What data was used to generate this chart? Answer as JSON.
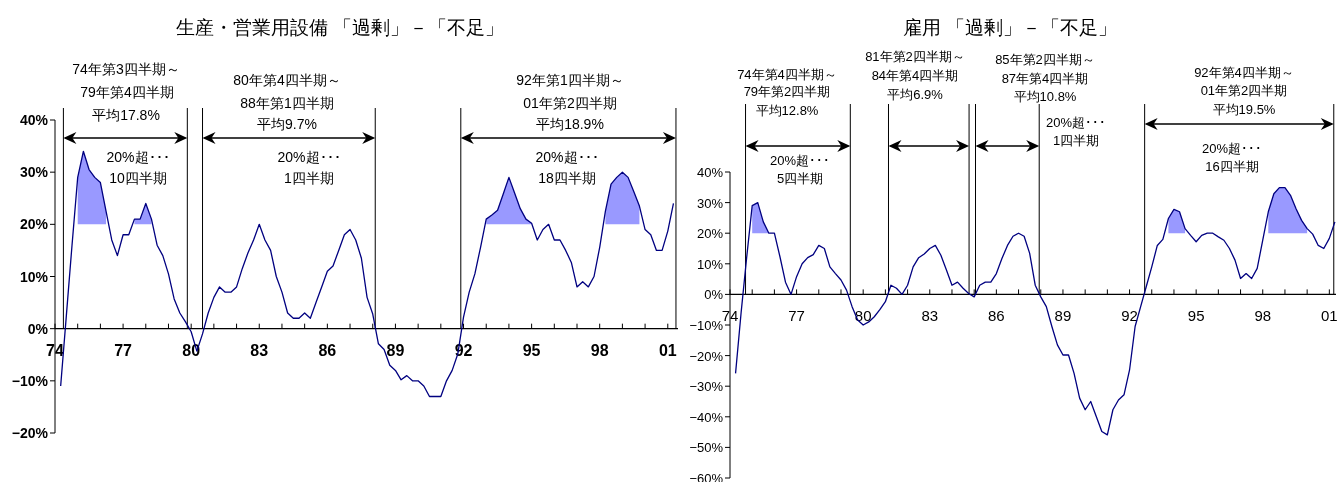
{
  "chart_data": [
    {
      "type": "line",
      "title": "生産・営業用設備 「過剰」－「不足」",
      "x": [
        1974.25,
        1974.5,
        1974.75,
        1975,
        1975.25,
        1975.5,
        1975.75,
        1976,
        1976.25,
        1976.5,
        1976.75,
        1977,
        1977.25,
        1977.5,
        1977.75,
        1978,
        1978.25,
        1978.5,
        1978.75,
        1979,
        1979.25,
        1979.5,
        1979.75,
        1980,
        1980.25,
        1980.5,
        1980.75,
        1981,
        1981.25,
        1981.5,
        1981.75,
        1982,
        1982.25,
        1982.5,
        1982.75,
        1983,
        1983.25,
        1983.5,
        1983.75,
        1984,
        1984.25,
        1984.5,
        1984.75,
        1985,
        1985.25,
        1985.5,
        1985.75,
        1986,
        1986.25,
        1986.5,
        1986.75,
        1987,
        1987.25,
        1987.5,
        1987.75,
        1988,
        1988.25,
        1988.5,
        1988.75,
        1989,
        1989.25,
        1989.5,
        1989.75,
        1990,
        1990.25,
        1990.5,
        1990.75,
        1991,
        1991.25,
        1991.5,
        1991.75,
        1992,
        1992.25,
        1992.5,
        1992.75,
        1993,
        1993.25,
        1993.5,
        1993.75,
        1994,
        1994.25,
        1994.5,
        1994.75,
        1995,
        1995.25,
        1995.5,
        1995.75,
        1996,
        1996.25,
        1996.5,
        1996.75,
        1997,
        1997.25,
        1997.5,
        1997.75,
        1998,
        1998.25,
        1998.5,
        1998.75,
        1999,
        1999.25,
        1999.5,
        1999.75,
        2000,
        2000.25,
        2000.5,
        2000.75,
        2001,
        2001.25
      ],
      "series": [
        {
          "color": "#000080",
          "values": [
            -11,
            2.5,
            16,
            29,
            34,
            30.5,
            29,
            28,
            22.5,
            17,
            14,
            18,
            18,
            21,
            21,
            24,
            21,
            16,
            14,
            10.5,
            5.7,
            3,
            1.3,
            -0.6,
            -4.3,
            -1,
            3,
            6,
            8,
            7,
            7,
            8,
            11.5,
            14.5,
            17,
            20,
            17,
            15,
            10,
            7,
            3,
            2,
            2,
            3,
            2,
            5,
            8,
            11,
            12,
            15,
            18,
            19,
            17,
            13.5,
            6,
            2.8,
            -2.9,
            -4,
            -7,
            -8,
            -9.8,
            -9,
            -10,
            -10,
            -11,
            -13,
            -13,
            -13,
            -10,
            -8,
            -4.8,
            2.2,
            7,
            10.5,
            15.6,
            21,
            21.8,
            22.7,
            25.8,
            29,
            26,
            23,
            21,
            20.2,
            17,
            19,
            20,
            17,
            17,
            15,
            12.7,
            8,
            9,
            8,
            10,
            15.6,
            22.5,
            27.7,
            29,
            30,
            29,
            26.3,
            23.5,
            19,
            18,
            15,
            15,
            18.7,
            24
          ],
          "lower": [
            null,
            null,
            null,
            20,
            20,
            20,
            20,
            20,
            20,
            null,
            null,
            null,
            null,
            20,
            20,
            20,
            20,
            null,
            null,
            null,
            null,
            null,
            null,
            null,
            null,
            null,
            null,
            null,
            null,
            null,
            null,
            null,
            null,
            null,
            null,
            null,
            null,
            null,
            null,
            null,
            null,
            null,
            null,
            null,
            null,
            null,
            null,
            null,
            null,
            null,
            null,
            null,
            null,
            null,
            null,
            null,
            null,
            null,
            null,
            null,
            null,
            null,
            null,
            null,
            null,
            null,
            null,
            null,
            null,
            null,
            null,
            null,
            null,
            null,
            null,
            20,
            20,
            20,
            20,
            20,
            20,
            20,
            20,
            20,
            null,
            null,
            null,
            null,
            null,
            null,
            null,
            null,
            null,
            null,
            null,
            null,
            20,
            20,
            20,
            20,
            20,
            20,
            20,
            null,
            null,
            null,
            null,
            null,
            null
          ],
          "upper": [
            null,
            null,
            null,
            29,
            34,
            30.5,
            29,
            28,
            22.5,
            null,
            null,
            null,
            null,
            21,
            21,
            24,
            21,
            null,
            null,
            null,
            null,
            null,
            null,
            null,
            null,
            null,
            null,
            null,
            null,
            null,
            null,
            null,
            null,
            null,
            null,
            null,
            null,
            null,
            null,
            null,
            null,
            null,
            null,
            null,
            null,
            null,
            null,
            null,
            null,
            null,
            null,
            null,
            null,
            null,
            null,
            null,
            null,
            null,
            null,
            null,
            null,
            null,
            null,
            null,
            null,
            null,
            null,
            null,
            null,
            null,
            null,
            null,
            null,
            null,
            null,
            21,
            21.8,
            22.7,
            25.8,
            29,
            26,
            23,
            21,
            20.2,
            null,
            null,
            null,
            null,
            null,
            null,
            null,
            null,
            null,
            null,
            null,
            null,
            22.5,
            27.7,
            29,
            30,
            29,
            26.3,
            23.5,
            null,
            null,
            null,
            null,
            null,
            null
          ]
        }
      ],
      "xlim": [
        1974,
        2001.45
      ],
      "xticks": [
        {
          "value": 1974,
          "label": "74"
        },
        {
          "value": 1975,
          "label": null
        },
        {
          "value": 1976,
          "label": null
        },
        {
          "value": 1977,
          "label": "77"
        },
        {
          "value": 1978,
          "label": null
        },
        {
          "value": 1979,
          "label": null
        },
        {
          "value": 1980,
          "label": "80"
        },
        {
          "value": 1981,
          "label": null
        },
        {
          "value": 1982,
          "label": null
        },
        {
          "value": 1983,
          "label": "83"
        },
        {
          "value": 1984,
          "label": null
        },
        {
          "value": 1985,
          "label": null
        },
        {
          "value": 1986,
          "label": "86"
        },
        {
          "value": 1987,
          "label": null
        },
        {
          "value": 1988,
          "label": null
        },
        {
          "value": 1989,
          "label": "89"
        },
        {
          "value": 1990,
          "label": null
        },
        {
          "value": 1991,
          "label": null
        },
        {
          "value": 1992,
          "label": "92"
        },
        {
          "value": 1993,
          "label": null
        },
        {
          "value": 1994,
          "label": null
        },
        {
          "value": 1995,
          "label": "95"
        },
        {
          "value": 1996,
          "label": null
        },
        {
          "value": 1997,
          "label": null
        },
        {
          "value": 1998,
          "label": "98"
        },
        {
          "value": 1999,
          "label": null
        },
        {
          "value": 2000,
          "label": null
        },
        {
          "value": 2001,
          "label": "01"
        }
      ],
      "ylim": [
        -20,
        40
      ],
      "yticks": [
        {
          "value": -20,
          "label": "−20%"
        },
        {
          "value": -10,
          "label": "−10%"
        },
        {
          "value": 0,
          "label": "0%"
        },
        {
          "value": 10,
          "label": "10%"
        },
        {
          "value": 20,
          "label": "20%"
        },
        {
          "value": 30,
          "label": "30%"
        },
        {
          "value": 40,
          "label": "40%"
        }
      ],
      "ref_lines": [
        {
          "axis": "x",
          "value": 1974.37
        },
        {
          "axis": "x",
          "value": 1979.83
        },
        {
          "axis": "x",
          "value": 1980.5
        },
        {
          "axis": "x",
          "value": 1988.11
        },
        {
          "axis": "x",
          "value": 1991.88
        },
        {
          "axis": "x",
          "value": 2001.36
        }
      ],
      "annotations": [
        "74年第3四半期～",
        "79年第4四半期",
        "平均17.8%",
        "20%超･･･",
        "10四半期",
        "80年第4四半期～",
        "88年第1四半期",
        "平均9.7%",
        "20%超･･･",
        "1四半期",
        "92年第1四半期～",
        "01年第2四半期",
        "平均18.9%",
        "20%超･･･",
        "18四半期"
      ]
    },
    {
      "type": "line",
      "title": "雇用 「過剰」－「不足」",
      "x": [
        1974.25,
        1974.5,
        1974.75,
        1975,
        1975.25,
        1975.5,
        1975.75,
        1976,
        1976.25,
        1976.5,
        1976.75,
        1977,
        1977.25,
        1977.5,
        1977.75,
        1978,
        1978.25,
        1978.5,
        1978.75,
        1979,
        1979.25,
        1979.5,
        1979.75,
        1980,
        1980.25,
        1980.5,
        1980.75,
        1981,
        1981.25,
        1981.5,
        1981.75,
        1982,
        1982.25,
        1982.5,
        1982.75,
        1983,
        1983.25,
        1983.5,
        1983.75,
        1984,
        1984.25,
        1984.5,
        1984.75,
        1985,
        1985.25,
        1985.5,
        1985.75,
        1986,
        1986.25,
        1986.5,
        1986.75,
        1987,
        1987.25,
        1987.5,
        1987.75,
        1988,
        1988.25,
        1988.5,
        1988.75,
        1989,
        1989.25,
        1989.5,
        1989.75,
        1990,
        1990.25,
        1990.5,
        1990.75,
        1991,
        1991.25,
        1991.5,
        1991.75,
        1992,
        1992.25,
        1992.5,
        1992.75,
        1993,
        1993.25,
        1993.5,
        1993.75,
        1994,
        1994.25,
        1994.5,
        1994.75,
        1995,
        1995.25,
        1995.5,
        1995.75,
        1996,
        1996.25,
        1996.5,
        1996.75,
        1997,
        1997.25,
        1997.5,
        1997.75,
        1998,
        1998.25,
        1998.5,
        1998.75,
        1999,
        1999.25,
        1999.5,
        1999.75,
        2000,
        2000.25,
        2000.5,
        2000.75,
        2001,
        2001.25
      ],
      "series": [
        {
          "color": "#000080",
          "values": [
            -25.8,
            -6,
            12,
            29,
            30,
            23.7,
            20,
            20,
            12.3,
            4,
            0,
            5.8,
            10,
            12,
            13,
            16,
            15,
            9,
            6.8,
            4.7,
            1.4,
            -4,
            -8.4,
            -10,
            -9,
            -7.3,
            -5,
            -2.4,
            3,
            2,
            0,
            3,
            9,
            12,
            13.2,
            15,
            16,
            12.8,
            8,
            3,
            4,
            2,
            0.3,
            -0.8,
            3,
            4,
            4,
            6.8,
            11.7,
            16,
            19,
            20,
            19,
            13.4,
            3,
            -0.8,
            -4,
            -10.5,
            -16.5,
            -19.8,
            -19.8,
            -25.8,
            -33.9,
            -37.7,
            -35,
            -39.9,
            -44.8,
            -45.9,
            -37.7,
            -34.5,
            -32.8,
            -24.7,
            -10.5,
            -4,
            2.5,
            9,
            16,
            18,
            24.8,
            27.8,
            27,
            21.5,
            19.3,
            17.2,
            19.3,
            20,
            20,
            18.8,
            17.7,
            15,
            11.2,
            5.2,
            6.8,
            5.2,
            8.5,
            17.7,
            27,
            32.9,
            34.9,
            34.9,
            32.4,
            28,
            24.2,
            21.5,
            19.7,
            16,
            15,
            18.3,
            23.7
          ],
          "lower": [
            null,
            null,
            null,
            20,
            20,
            20,
            20,
            null,
            null,
            null,
            null,
            null,
            null,
            null,
            null,
            null,
            null,
            null,
            null,
            null,
            null,
            null,
            null,
            null,
            null,
            null,
            null,
            null,
            null,
            null,
            null,
            null,
            null,
            null,
            null,
            null,
            null,
            null,
            null,
            null,
            null,
            null,
            null,
            null,
            null,
            null,
            null,
            null,
            null,
            null,
            null,
            null,
            null,
            null,
            null,
            null,
            null,
            null,
            null,
            null,
            null,
            null,
            null,
            null,
            null,
            null,
            null,
            null,
            null,
            null,
            null,
            null,
            null,
            null,
            null,
            null,
            null,
            null,
            20,
            20,
            20,
            20,
            null,
            null,
            null,
            null,
            null,
            null,
            null,
            null,
            null,
            null,
            null,
            null,
            null,
            null,
            20,
            20,
            20,
            20,
            20,
            20,
            20,
            20,
            null,
            null,
            null,
            null,
            null
          ],
          "upper": [
            null,
            null,
            null,
            29,
            30,
            23.7,
            20,
            null,
            null,
            null,
            null,
            null,
            null,
            null,
            null,
            null,
            null,
            null,
            null,
            null,
            null,
            null,
            null,
            null,
            null,
            null,
            null,
            null,
            null,
            null,
            null,
            null,
            null,
            null,
            null,
            null,
            null,
            null,
            null,
            null,
            null,
            null,
            null,
            null,
            null,
            null,
            null,
            null,
            null,
            null,
            null,
            null,
            null,
            null,
            null,
            null,
            null,
            null,
            null,
            null,
            null,
            null,
            null,
            null,
            null,
            null,
            null,
            null,
            null,
            null,
            null,
            null,
            null,
            null,
            null,
            null,
            null,
            null,
            24.8,
            27.8,
            27,
            21.5,
            null,
            null,
            null,
            null,
            null,
            null,
            null,
            null,
            null,
            null,
            null,
            null,
            null,
            null,
            27,
            32.9,
            34.9,
            34.9,
            32.4,
            28,
            24.2,
            21.5,
            null,
            null,
            null,
            null,
            null
          ]
        }
      ],
      "xlim": [
        1974,
        2001.3
      ],
      "xticks": [
        {
          "value": 1974,
          "label": "74"
        },
        {
          "value": 1975,
          "label": null
        },
        {
          "value": 1976,
          "label": null
        },
        {
          "value": 1977,
          "label": "77"
        },
        {
          "value": 1978,
          "label": null
        },
        {
          "value": 1979,
          "label": null
        },
        {
          "value": 1980,
          "label": "80"
        },
        {
          "value": 1981,
          "label": null
        },
        {
          "value": 1982,
          "label": null
        },
        {
          "value": 1983,
          "label": "83"
        },
        {
          "value": 1984,
          "label": null
        },
        {
          "value": 1985,
          "label": null
        },
        {
          "value": 1986,
          "label": "86"
        },
        {
          "value": 1987,
          "label": null
        },
        {
          "value": 1988,
          "label": null
        },
        {
          "value": 1989,
          "label": "89"
        },
        {
          "value": 1990,
          "label": null
        },
        {
          "value": 1991,
          "label": null
        },
        {
          "value": 1992,
          "label": "92"
        },
        {
          "value": 1993,
          "label": null
        },
        {
          "value": 1994,
          "label": null
        },
        {
          "value": 1995,
          "label": "95"
        },
        {
          "value": 1996,
          "label": null
        },
        {
          "value": 1997,
          "label": null
        },
        {
          "value": 1998,
          "label": "98"
        },
        {
          "value": 1999,
          "label": null
        },
        {
          "value": 2000,
          "label": null
        },
        {
          "value": 2001,
          "label": "01"
        }
      ],
      "ylim": [
        -60,
        40
      ],
      "yticks": [
        {
          "value": -60,
          "label": "−60%"
        },
        {
          "value": -50,
          "label": "−50%"
        },
        {
          "value": -40,
          "label": "−40%"
        },
        {
          "value": -30,
          "label": "−30%"
        },
        {
          "value": -20,
          "label": "−20%"
        },
        {
          "value": -10,
          "label": "−10%"
        },
        {
          "value": 0,
          "label": "0%"
        },
        {
          "value": 10,
          "label": "10%"
        },
        {
          "value": 20,
          "label": "20%"
        },
        {
          "value": 30,
          "label": "30%"
        },
        {
          "value": 40,
          "label": "40%"
        }
      ],
      "ref_lines": [
        {
          "axis": "x",
          "value": 1974.7
        },
        {
          "axis": "x",
          "value": 1979.42
        },
        {
          "axis": "x",
          "value": 1981.14
        },
        {
          "axis": "x",
          "value": 1984.77
        },
        {
          "axis": "x",
          "value": 1985.06
        },
        {
          "axis": "x",
          "value": 1987.93
        },
        {
          "axis": "x",
          "value": 1992.68
        },
        {
          "axis": "x",
          "value": 2001.2
        }
      ],
      "annotations": [
        "74年第4四半期～",
        "79年第2四半期",
        "平均12.8%",
        "20%超･･･",
        "5四半期",
        "81年第2四半期～",
        "84年第4四半期",
        "平均6.9%",
        "85年第2四半期～",
        "87年第4四半期",
        "平均10.8%",
        "20%超･･･",
        "1四半期",
        "92年第4四半期～",
        "01年第2四半期",
        "平均19.5%",
        "20%超･･･",
        "16四半期"
      ]
    }
  ]
}
